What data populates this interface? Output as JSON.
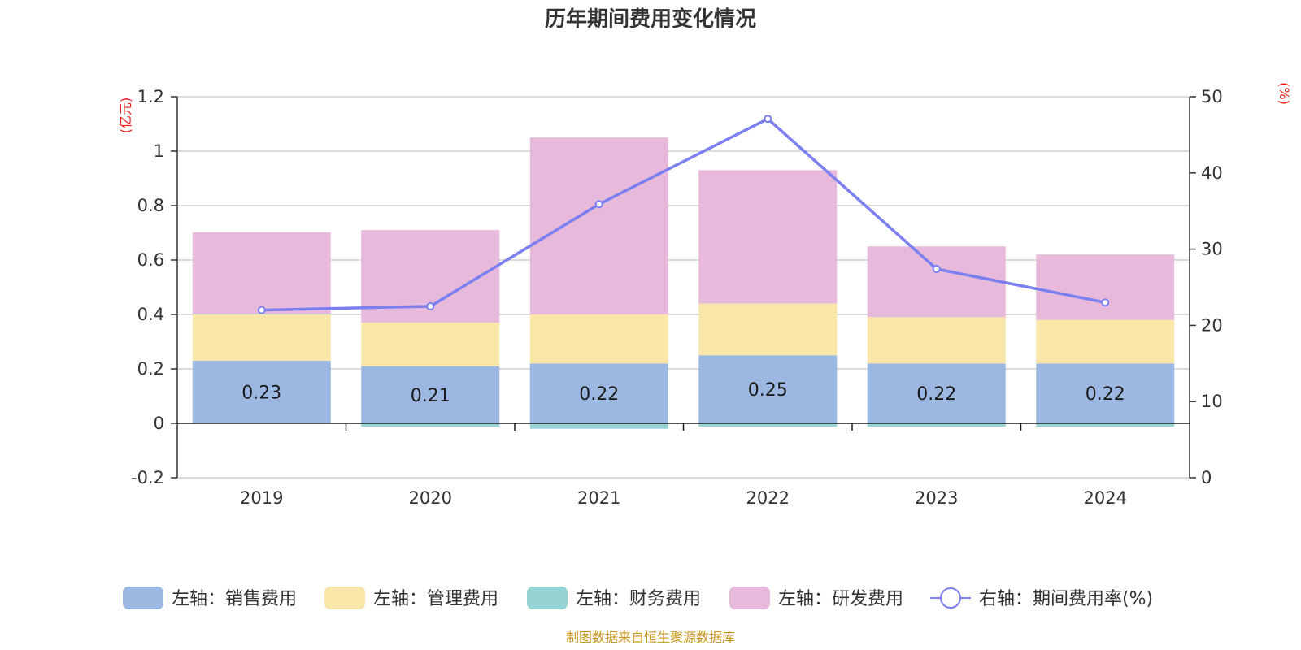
{
  "chart_data": {
    "type": "bar",
    "title": "历年期间费用变化情况",
    "categories": [
      "2019",
      "2020",
      "2021",
      "2022",
      "2023",
      "2024"
    ],
    "left_axis": {
      "unit": "(亿元)",
      "ylim": [
        -0.2,
        1.2
      ],
      "ticks": [
        -0.2,
        0,
        0.2,
        0.4,
        0.6,
        0.8,
        1,
        1.2
      ]
    },
    "right_axis": {
      "unit": "(%)",
      "ylim": [
        0,
        50
      ],
      "ticks": [
        0,
        10,
        20,
        30,
        40,
        50
      ]
    },
    "grid": true,
    "legend_position": "bottom",
    "series": [
      {
        "name": "左轴：销售费用",
        "axis": "left",
        "kind": "bar",
        "color": "#9cb8e2",
        "values": [
          0.23,
          0.21,
          0.22,
          0.25,
          0.22,
          0.22
        ],
        "labels": [
          "0.23",
          "0.21",
          "0.22",
          "0.25",
          "0.22",
          "0.22"
        ]
      },
      {
        "name": "左轴：管理费用",
        "axis": "left",
        "kind": "bar",
        "color": "#f8e7a8",
        "values": [
          0.17,
          0.16,
          0.18,
          0.19,
          0.17,
          0.16
        ]
      },
      {
        "name": "左轴：财务费用",
        "axis": "left",
        "kind": "bar",
        "color": "#96d3d4",
        "values": [
          0.002,
          -0.012,
          -0.02,
          -0.012,
          -0.012,
          -0.012
        ]
      },
      {
        "name": "左轴：研发费用",
        "axis": "left",
        "kind": "bar",
        "color": "#e7b9da",
        "values": [
          0.3,
          0.34,
          0.65,
          0.49,
          0.26,
          0.24
        ]
      },
      {
        "name": "右轴：期间费用率(%)",
        "axis": "right",
        "kind": "line",
        "color": "#7b7fef",
        "values": [
          22.0,
          22.5,
          35.9,
          47.1,
          27.4,
          23.0
        ]
      }
    ]
  },
  "footer": "制图数据来自恒生聚源数据库"
}
